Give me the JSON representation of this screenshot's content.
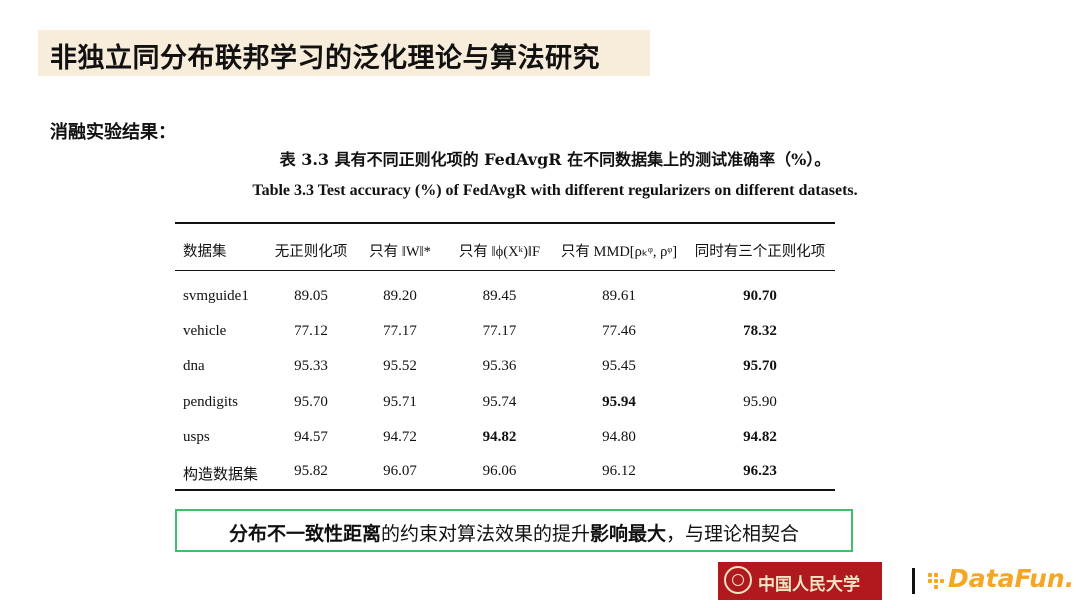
{
  "title": "非独立同分布联邦学习的泛化理论与算法研究",
  "section_label": "消融实验结果：",
  "table": {
    "caption_cn": "表 3.3 具有不同正则化项的 FedAvgR 在不同数据集上的测试准确率（%）。",
    "caption_en": "Table 3.3 Test accuracy (%) of FedAvgR with different regularizers on different datasets.",
    "headers": [
      "数据集",
      "无正则化项",
      "只有 ‖W‖*",
      "只有 ‖ϕ(Xᵏ)‖F",
      "只有 MMD[ρₖᵠ, ρᵠ]",
      "同时有三个正则化项"
    ],
    "rows": [
      {
        "dataset": "svmguide1",
        "v": [
          "89.05",
          "89.20",
          "89.45",
          "89.61",
          "90.70"
        ],
        "bold": [
          4
        ]
      },
      {
        "dataset": "vehicle",
        "v": [
          "77.12",
          "77.17",
          "77.17",
          "77.46",
          "78.32"
        ],
        "bold": [
          4
        ]
      },
      {
        "dataset": "dna",
        "v": [
          "95.33",
          "95.52",
          "95.36",
          "95.45",
          "95.70"
        ],
        "bold": [
          4
        ]
      },
      {
        "dataset": "pendigits",
        "v": [
          "95.70",
          "95.71",
          "95.74",
          "95.94",
          "95.90"
        ],
        "bold": [
          3
        ]
      },
      {
        "dataset": "usps",
        "v": [
          "94.57",
          "94.72",
          "94.82",
          "94.80",
          "94.82"
        ],
        "bold": [
          2,
          4
        ]
      },
      {
        "dataset": "构造数据集",
        "v": [
          "95.82",
          "96.07",
          "96.06",
          "96.12",
          "96.23"
        ],
        "bold": [
          4
        ]
      }
    ]
  },
  "highlight": {
    "p1": "分布不一致性距离",
    "p2": "的约束对算法效果的提升",
    "p3": "影响最大",
    "p4": "，与理论相契合"
  },
  "logos": {
    "ruc": "中国人民大学",
    "datafun": "DataFun."
  },
  "colors": {
    "title_bg": "#f8ecda",
    "highlight_border": "#3fbf6a",
    "ruc_red": "#b0191d",
    "datafun_orange": "#f5a623"
  }
}
